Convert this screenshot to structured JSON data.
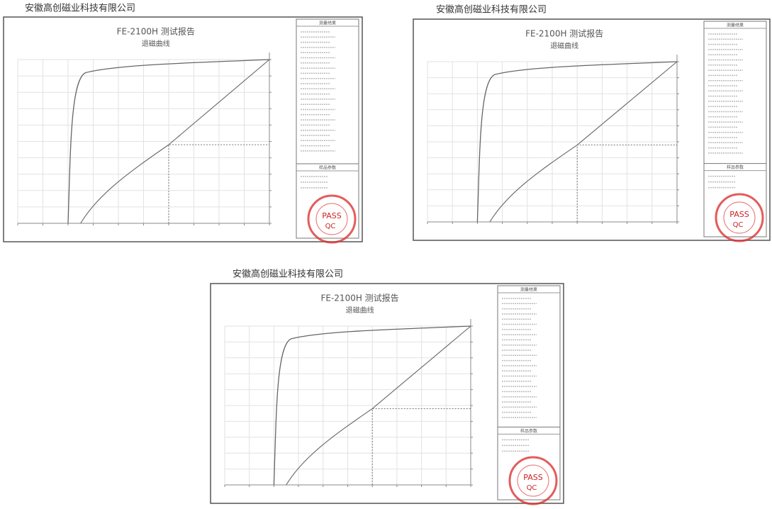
{
  "reports": [
    {
      "company": "安徽高创磁业科技有限公司",
      "title": "FE-2100H 测试报告",
      "subtitle": "退磁曲线",
      "results_header": "测量结果",
      "sample_header": "样品参数",
      "stamp_pass": "PASS",
      "stamp_qc": "QC"
    },
    {
      "company": "安徽高创磁业科技有限公司",
      "title": "FE-2100H 测试报告",
      "subtitle": "退磁曲线",
      "results_header": "测量结果",
      "sample_header": "样品参数",
      "stamp_pass": "PASS",
      "stamp_qc": "QC"
    },
    {
      "company": "安徽高创磁业科技有限公司",
      "title": "FE-2100H 测试报告",
      "subtitle": "退磁曲线",
      "results_header": "测量结果",
      "sample_header": "样品参数",
      "stamp_pass": "PASS",
      "stamp_qc": "QC"
    }
  ]
}
